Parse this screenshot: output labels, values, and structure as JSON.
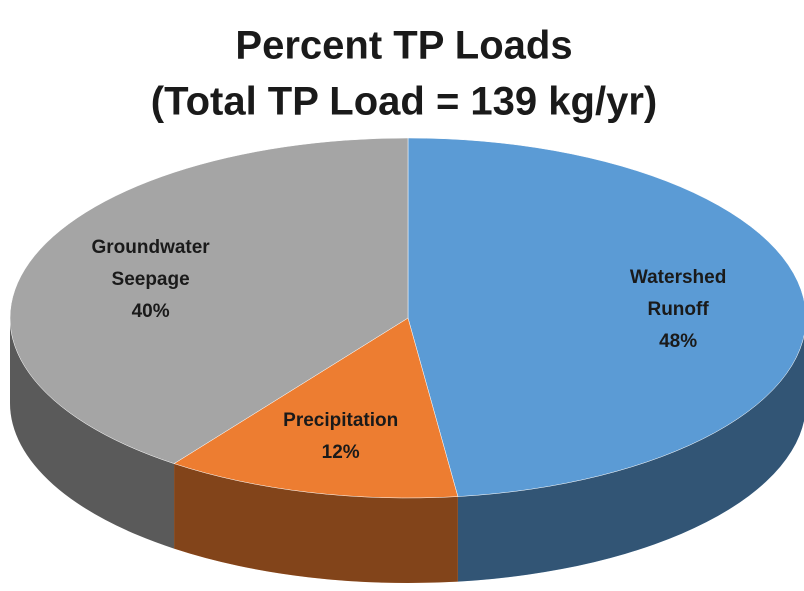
{
  "chart_data": {
    "type": "pie",
    "title": "Percent TP Loads",
    "subtitle": "(Total TP Load = 139 kg/yr)",
    "categories": [
      "Watershed Runoff",
      "Precipitation",
      "Groundwater Seepage"
    ],
    "values": [
      48,
      12,
      40
    ],
    "value_labels": [
      "48%",
      "12%",
      "40%"
    ],
    "colors": [
      "#5b9bd5",
      "#ed7d31",
      "#a5a5a5"
    ]
  }
}
